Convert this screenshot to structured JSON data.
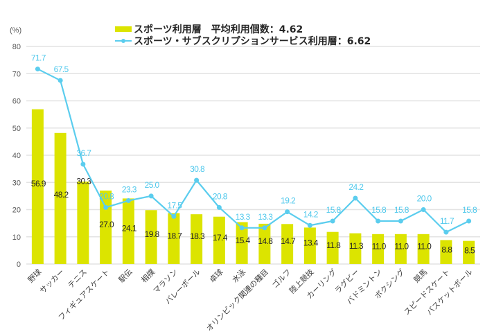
{
  "chart_data": {
    "type": "bar",
    "title": "",
    "unit_label": "(%)",
    "xlabel": "",
    "ylabel": "(%)",
    "ylim": [
      0,
      80
    ],
    "yticks": [
      0,
      10,
      20,
      30,
      40,
      50,
      60,
      70,
      80
    ],
    "grid": true,
    "legend_position": "top-center",
    "categories": [
      "野球",
      "サッカー",
      "テニス",
      "フィギュアスケート",
      "駅伝",
      "相撲",
      "マラソン",
      "バレーボール",
      "卓球",
      "水泳",
      "オリンピック関連の種目",
      "ゴルフ",
      "陸上競技",
      "カーリング",
      "ラグビー",
      "バドミントン",
      "ボクシング",
      "競馬",
      "スピードスケート",
      "バスケットボール"
    ],
    "series": [
      {
        "name": "スポーツ利用層　平均利用個数：4.62",
        "kind": "bar",
        "color": "#dce400",
        "values": [
          56.9,
          48.2,
          30.3,
          27.0,
          24.1,
          19.8,
          18.7,
          18.3,
          17.4,
          15.4,
          14.8,
          14.7,
          13.4,
          11.8,
          11.3,
          11.0,
          11.0,
          11.0,
          8.8,
          8.5
        ]
      },
      {
        "name": "スポーツ・サブスクリプションサービス利用層：6.62",
        "kind": "line",
        "color": "#5bcdee",
        "values": [
          71.7,
          67.5,
          36.7,
          20.8,
          23.3,
          25.0,
          17.5,
          30.8,
          20.8,
          13.3,
          13.3,
          19.2,
          14.2,
          15.8,
          24.2,
          15.8,
          15.8,
          20.0,
          11.7,
          15.8
        ]
      }
    ]
  }
}
